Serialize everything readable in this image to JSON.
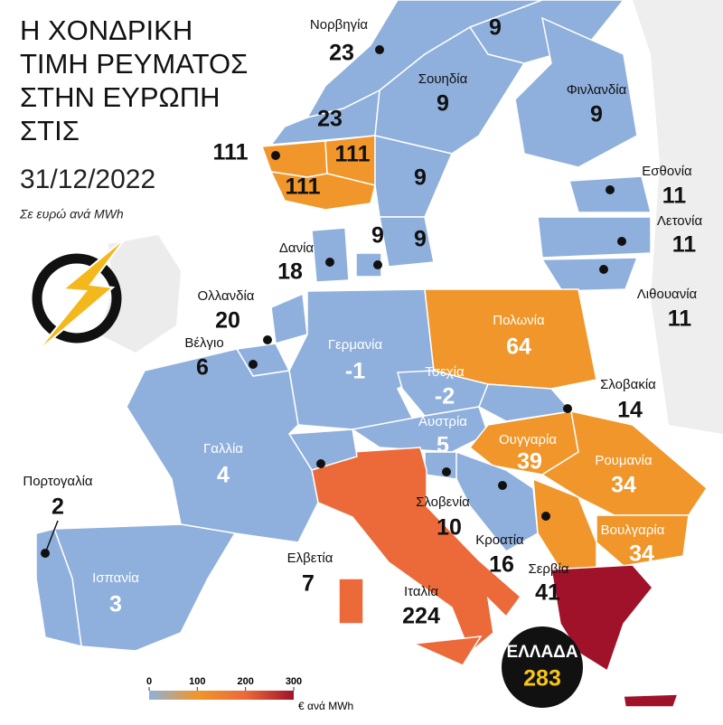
{
  "header": {
    "title_lines": [
      "Η ΧΟΝΔΡΙΚΗ",
      "ΤΙΜΗ ΡΕΥΜΑΤΟΣ",
      "ΣΤΗΝ ΕΥΡΩΠΗ",
      "ΣΤΙΣ"
    ],
    "date": "31/12/2022",
    "subtitle": "Σε ευρώ ανά MWh"
  },
  "regions": [
    {
      "name": "Νορβηγία",
      "value": 23,
      "color": "#8fb0dc"
    },
    {
      "value": 23,
      "color": "#8fb0dc"
    },
    {
      "value": 111,
      "color": "#f0962a"
    },
    {
      "value": 111,
      "color": "#f0962a"
    },
    {
      "value": 111,
      "color": "#f0962a"
    },
    {
      "name": "Σουηδία",
      "value": 9,
      "color": "#8fb0dc"
    },
    {
      "value": 9,
      "color": "#8fb0dc"
    },
    {
      "value": 9,
      "color": "#8fb0dc"
    },
    {
      "value": 9,
      "color": "#8fb0dc"
    },
    {
      "name": "Φινλανδία",
      "value": 9,
      "color": "#8fb0dc"
    },
    {
      "name": "Εσθονία",
      "value": 11,
      "color": "#8fb0dc"
    },
    {
      "name": "Λετονία",
      "value": 11,
      "color": "#8fb0dc"
    },
    {
      "name": "Λιθουανία",
      "value": 11,
      "color": "#8fb0dc"
    },
    {
      "name": "Δανία",
      "value": 18,
      "color": "#8fb0dc"
    },
    {
      "value": 9,
      "color": "#8fb0dc"
    },
    {
      "name": "Ολλανδία",
      "value": 20,
      "color": "#8fb0dc"
    },
    {
      "name": "Βέλγιο",
      "value": 6,
      "color": "#8fb0dc"
    },
    {
      "name": "Γερμανία",
      "value": -1,
      "color": "#8fb0dc"
    },
    {
      "name": "Πολωνία",
      "value": 64,
      "color": "#f0962a"
    },
    {
      "name": "Τσεχία",
      "value": -2,
      "color": "#8fb0dc"
    },
    {
      "name": "Σλοβακία",
      "value": 14,
      "color": "#8fb0dc"
    },
    {
      "name": "Αυστρία",
      "value": 5,
      "color": "#8fb0dc"
    },
    {
      "name": "Ουγγαρία",
      "value": 39,
      "color": "#f0962a"
    },
    {
      "name": "Ρουμανία",
      "value": 34,
      "color": "#f0962a"
    },
    {
      "name": "Βουλγαρία",
      "value": 34,
      "color": "#f0962a"
    },
    {
      "name": "Σλοβενία",
      "value": 10,
      "color": "#8fb0dc"
    },
    {
      "name": "Κροατία",
      "value": 16,
      "color": "#8fb0dc"
    },
    {
      "name": "Σερβία",
      "value": 41,
      "color": "#f0962a"
    },
    {
      "name": "Ιταλία",
      "value": 224,
      "color": "#ec6a3a"
    },
    {
      "name": "Ελβετία",
      "value": 7,
      "color": "#8fb0dc"
    },
    {
      "name": "Γαλλία",
      "value": 4,
      "color": "#8fb0dc"
    },
    {
      "name": "Ισπανία",
      "value": 3,
      "color": "#8fb0dc"
    },
    {
      "name": "Πορτογαλία",
      "value": 2,
      "color": "#8fb0dc"
    },
    {
      "name": "ΕΛΛΑΔΑ",
      "value": 283,
      "color": "#a0122a"
    }
  ],
  "legend": {
    "ticks": [
      0,
      100,
      200,
      300
    ],
    "unit": "€ ανά MWh",
    "colors": [
      "#8fb0dc",
      "#f0962a",
      "#ec6a3a",
      "#a0122a"
    ]
  }
}
